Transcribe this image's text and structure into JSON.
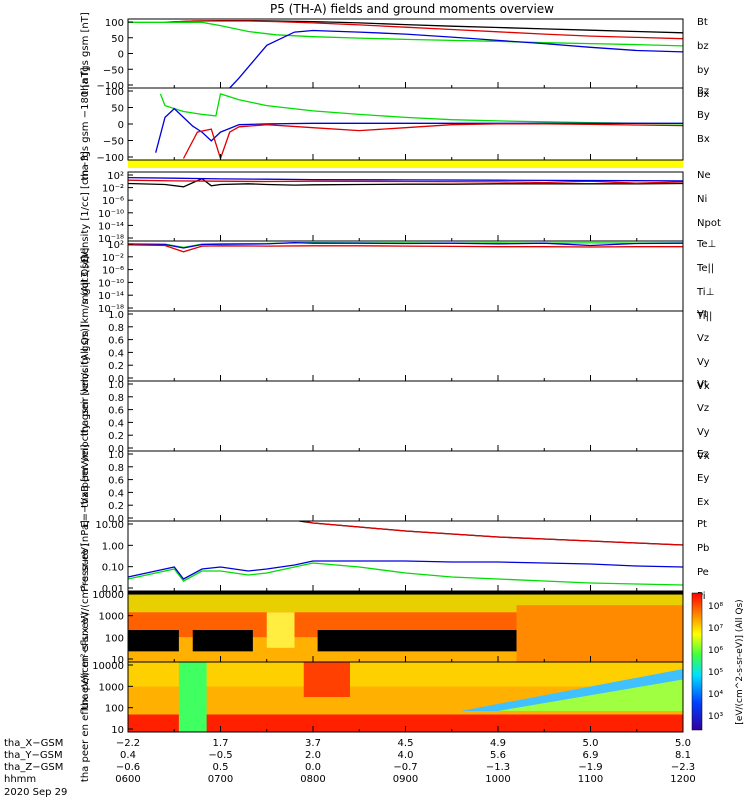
{
  "title": "P5 (TH-A) fields and ground moments overview",
  "colors": {
    "black": "#000000",
    "red": "#e00000",
    "green": "#00dd00",
    "blue": "#0000dd",
    "yellow": "#ffff00"
  },
  "chart_data": [
    {
      "type": "line",
      "ylabel": "tha fgs gsm [nT]",
      "yticks": [
        "100",
        "50",
        "0",
        "−50",
        "−100"
      ],
      "ylim": [
        -100,
        110
      ],
      "legend": [
        {
          "label": "Bt",
          "color": "#000000"
        },
        {
          "label": "bz",
          "color": "#e00000"
        },
        {
          "label": "by",
          "color": "#00dd00"
        },
        {
          "label": "bx",
          "color": "#0000dd"
        }
      ],
      "series": [
        {
          "color": "#000000",
          "x": [
            6.4,
            6.7,
            7.0,
            7.3,
            7.6,
            8.0,
            8.5,
            9.0,
            9.5,
            10.0,
            10.5,
            11.0,
            11.5,
            12.0
          ],
          "y": [
            100,
            104,
            105,
            105,
            104,
            102,
            98,
            93,
            88,
            84,
            80,
            76,
            72,
            68
          ]
        },
        {
          "color": "#e00000",
          "x": [
            6.4,
            6.7,
            7.0,
            7.3,
            7.6,
            8.0,
            8.5,
            9.0,
            9.5,
            10.0,
            10.5,
            11.0,
            11.5,
            12.0
          ],
          "y": [
            100,
            104,
            104,
            104,
            102,
            98,
            92,
            85,
            78,
            71,
            64,
            58,
            54,
            50
          ]
        },
        {
          "color": "#00dd00",
          "x": [
            6.0,
            6.2,
            6.4,
            6.6,
            6.8,
            7.0,
            7.3,
            7.6,
            8.0,
            8.5,
            9.0,
            9.5,
            10.0,
            10.5,
            11.0,
            11.5,
            12.0
          ],
          "y": [
            100,
            100,
            100,
            100,
            100,
            90,
            72,
            62,
            56,
            52,
            48,
            45,
            42,
            38,
            35,
            32,
            28
          ]
        },
        {
          "color": "#0000dd",
          "x": [
            7.1,
            7.2,
            7.35,
            7.5,
            7.8,
            8.0,
            8.5,
            9.0,
            9.5,
            10.0,
            10.5,
            11.0,
            11.5,
            12.0
          ],
          "y": [
            -100,
            -70,
            -20,
            30,
            70,
            75,
            70,
            64,
            55,
            45,
            35,
            24,
            14,
            10
          ]
        }
      ]
    },
    {
      "type": "line",
      "ylabel": "tha fgs gsm −180 [nT]",
      "yticks": [
        "100",
        "50",
        "0",
        "−50",
        "−100"
      ],
      "ylim": [
        -125,
        120
      ],
      "legend": [
        {
          "label": "Bz",
          "color": "#e00000"
        },
        {
          "label": "By",
          "color": "#00dd00"
        },
        {
          "label": "Bx",
          "color": "#0000dd"
        }
      ],
      "series": [
        {
          "color": "#00dd00",
          "x": [
            6.35,
            6.4,
            6.6,
            6.8,
            6.95,
            7.0,
            7.2,
            7.5,
            8.0,
            8.5,
            9.0,
            9.5,
            10.0,
            10.5,
            11.0,
            11.5,
            12.0
          ],
          "y": [
            100,
            60,
            40,
            30,
            25,
            100,
            80,
            60,
            42,
            30,
            20,
            12,
            8,
            5,
            2,
            0,
            -2
          ]
        },
        {
          "color": "#0000dd",
          "x": [
            6.3,
            6.4,
            6.5,
            6.6,
            6.7,
            6.8,
            6.9,
            7.0,
            7.2,
            7.5,
            8.0,
            9.0,
            10.0,
            11.0,
            12.0
          ],
          "y": [
            -100,
            20,
            50,
            20,
            -10,
            -30,
            -60,
            -30,
            -5,
            -2,
            0,
            0,
            0,
            0,
            0
          ]
        },
        {
          "color": "#e00000",
          "x": [
            6.6,
            6.75,
            6.9,
            7.0,
            7.1,
            7.2,
            7.5,
            8.0,
            8.5,
            9.0,
            9.5,
            10.0,
            10.5,
            11.0,
            11.5,
            12.0
          ],
          "y": [
            -120,
            -30,
            -20,
            -120,
            -30,
            -12,
            -5,
            -15,
            -25,
            -15,
            -5,
            -2,
            -2,
            -4,
            -6,
            -8
          ]
        }
      ]
    },
    {
      "type": "line",
      "ylabel": "Density [1/cc] [cm−3]",
      "yticks": [
        "10²",
        "10⁻²",
        "10⁻⁶",
        "10⁻¹⁰",
        "10⁻¹⁴",
        "10⁻¹⁸"
      ],
      "ylim": [
        -18,
        3
      ],
      "scale": "log",
      "legend": [
        {
          "label": "Ne",
          "color": "#e00000"
        },
        {
          "label": "Ni",
          "color": "#000000"
        },
        {
          "label": "Npot",
          "color": "#0000dd"
        }
      ],
      "series": [
        {
          "color": "#000000",
          "x": [
            6.0,
            6.4,
            6.6,
            6.8,
            6.9,
            7.0,
            7.3,
            7.5,
            7.8,
            8.0,
            8.5,
            9.0,
            9.5,
            10.0,
            10.5,
            11.0,
            11.5,
            12.0
          ],
          "y": [
            -0.5,
            -0.8,
            -1.5,
            1.0,
            -1.2,
            -0.8,
            -0.6,
            -0.8,
            -1.0,
            -0.9,
            -0.8,
            -0.7,
            -0.7,
            -0.6,
            -0.6,
            -0.6,
            -0.6,
            -0.5
          ]
        },
        {
          "color": "#e00000",
          "x": [
            6.0,
            6.5,
            7.0,
            7.5,
            8.0,
            9.0,
            10.0,
            10.5,
            11.0,
            11.5,
            12.0
          ],
          "y": [
            0.5,
            0.3,
            0.2,
            0.1,
            0.2,
            0.1,
            0.0,
            -0.2,
            0.2,
            -0.4,
            0.0
          ]
        },
        {
          "color": "#0000dd",
          "x": [
            6.0,
            6.5,
            7.0,
            7.5,
            8.0,
            9.0,
            10.0,
            11.0,
            12.0
          ],
          "y": [
            1.3,
            1.1,
            0.9,
            0.8,
            0.7,
            0.6,
            0.5,
            0.4,
            0.3
          ]
        }
      ]
    },
    {
      "type": "line",
      "ylabel": "mgqt3 [eV]",
      "yticks": [
        "10²",
        "10⁻²",
        "10⁻⁶",
        "10⁻¹⁰",
        "10⁻¹⁴",
        "10⁻¹⁸"
      ],
      "ylim": [
        -18,
        4
      ],
      "scale": "log",
      "legend": [
        {
          "label": "Te⊥",
          "color": "#e00000"
        },
        {
          "label": "Te||",
          "color": "#000000"
        },
        {
          "label": "Ti⊥",
          "color": "#0000dd"
        },
        {
          "label": "Ti||",
          "color": "#00dd00"
        }
      ],
      "series": [
        {
          "color": "#00dd00",
          "x": [
            6.0,
            6.4,
            6.6,
            6.8,
            7.0,
            7.5,
            8.0,
            8.5,
            9.0,
            9.5,
            10.0,
            10.5,
            11.0,
            11.5,
            12.0
          ],
          "y": [
            3.1,
            3.0,
            2.0,
            3.0,
            3.1,
            3.2,
            3.5,
            3.4,
            3.4,
            3.3,
            3.4,
            3.3,
            3.4,
            3.3,
            3.4
          ]
        },
        {
          "color": "#0000dd",
          "x": [
            6.0,
            6.4,
            6.6,
            6.8,
            7.0,
            7.5,
            7.8,
            8.0,
            8.5,
            9.0,
            9.5,
            10.0,
            10.5,
            11.0,
            11.5,
            12.0
          ],
          "y": [
            3.0,
            2.9,
            1.8,
            2.9,
            3.0,
            3.1,
            3.5,
            3.3,
            3.3,
            3.2,
            3.3,
            3.1,
            3.3,
            2.6,
            3.2,
            3.3
          ]
        },
        {
          "color": "#e00000",
          "x": [
            6.0,
            6.4,
            6.6,
            6.8,
            7.0,
            7.5,
            8.0,
            8.5,
            9.0,
            9.5,
            10.0,
            10.5,
            11.0,
            11.5,
            12.0
          ],
          "y": [
            2.8,
            2.6,
            0.6,
            2.4,
            2.5,
            2.4,
            2.5,
            2.5,
            2.4,
            2.3,
            2.2,
            2.2,
            2.1,
            2.2,
            2.2
          ]
        }
      ]
    },
    {
      "type": "line",
      "ylabel": "tha peir velocity gsm [km/s (All Qs)]",
      "yticks": [
        "1.0",
        "0.8",
        "0.6",
        "0.4",
        "0.2",
        "0.0"
      ],
      "ylim": [
        0,
        1
      ],
      "legend": [
        {
          "label": "Vt",
          "color": "#000000"
        },
        {
          "label": "Vz",
          "color": "#e00000"
        },
        {
          "label": "Vy",
          "color": "#00dd00"
        },
        {
          "label": "Vx",
          "color": "#0000dd"
        }
      ],
      "series": []
    },
    {
      "type": "line",
      "ylabel": "tha peer velocity gsm [km/s (All Qs)]",
      "yticks": [
        "1.0",
        "0.8",
        "0.6",
        "0.4",
        "0.2",
        "0.0"
      ],
      "ylim": [
        0,
        1
      ],
      "legend": [
        {
          "label": "Vt",
          "color": "#000000"
        },
        {
          "label": "Vz",
          "color": "#e00000"
        },
        {
          "label": "Vy",
          "color": "#00dd00"
        },
        {
          "label": "Vx",
          "color": "#0000dd"
        }
      ],
      "series": []
    },
    {
      "type": "line",
      "ylabel": "E=−VxB [mV/m]",
      "yticks": [
        "1.0",
        "0.8",
        "0.6",
        "0.4",
        "0.2",
        "0.0"
      ],
      "ylim": [
        0,
        1
      ],
      "legend": [
        {
          "label": "Ez",
          "color": "#e00000"
        },
        {
          "label": "Ey",
          "color": "#00dd00"
        },
        {
          "label": "Ex",
          "color": "#0000dd"
        }
      ],
      "series": []
    },
    {
      "type": "line",
      "ylabel": "Pressure [nPa]",
      "yticks": [
        "10.00",
        "1.00",
        "0.10",
        "0.01"
      ],
      "ylim": [
        -2.1,
        1.4
      ],
      "scale": "log",
      "legend": [
        {
          "label": "Pt",
          "color": "#000000"
        },
        {
          "label": "Pb",
          "color": "#e00000"
        },
        {
          "label": "Pe",
          "color": "#00dd00"
        },
        {
          "label": "Pi",
          "color": "#0000dd"
        }
      ],
      "series": [
        {
          "color": "#000000",
          "x": [
            7.85,
            8.0,
            8.5,
            9.0,
            9.5,
            10.0,
            10.5,
            11.0,
            11.5,
            12.0
          ],
          "y": [
            1.4,
            1.3,
            1.1,
            0.9,
            0.75,
            0.6,
            0.5,
            0.4,
            0.3,
            0.2
          ]
        },
        {
          "color": "#e00000",
          "x": [
            7.9,
            8.0,
            8.5,
            9.0,
            9.5,
            10.0,
            10.5,
            11.0,
            11.5,
            12.0
          ],
          "y": [
            1.4,
            1.3,
            1.1,
            0.9,
            0.75,
            0.6,
            0.5,
            0.4,
            0.3,
            0.2
          ]
        },
        {
          "color": "#00dd00",
          "x": [
            6.0,
            6.3,
            6.5,
            6.6,
            6.8,
            7.0,
            7.3,
            7.5,
            7.8,
            8.0,
            8.5,
            9.0,
            9.5,
            10.0,
            10.5,
            11.0,
            11.5,
            12.0
          ],
          "y": [
            -1.5,
            -1.2,
            -1.0,
            -1.6,
            -1.1,
            -1.1,
            -1.3,
            -1.2,
            -0.9,
            -0.7,
            -0.9,
            -1.2,
            -1.4,
            -1.5,
            -1.6,
            -1.7,
            -1.75,
            -1.8
          ]
        },
        {
          "color": "#0000dd",
          "x": [
            6.0,
            6.3,
            6.5,
            6.6,
            6.8,
            7.0,
            7.3,
            7.5,
            7.8,
            8.0,
            8.5,
            9.0,
            9.5,
            10.0,
            10.5,
            11.0,
            11.5,
            12.0
          ],
          "y": [
            -1.4,
            -1.1,
            -0.9,
            -1.5,
            -1.0,
            -0.9,
            -1.1,
            -1.0,
            -0.8,
            -0.6,
            -0.6,
            -0.6,
            -0.65,
            -0.65,
            -0.7,
            -0.75,
            -0.85,
            -0.9
          ]
        }
      ]
    },
    {
      "type": "heatmap",
      "ylabel": "tha peir en eflux eV/(cm²-s-sr-eV)",
      "yticks": [
        "10000",
        "1000",
        "100",
        "10"
      ],
      "scale": "log"
    },
    {
      "type": "heatmap",
      "ylabel": "tha peer en eflux eV/(cm²-s-sr-eV)",
      "yticks": [
        "10000",
        "1000",
        "100",
        "10"
      ],
      "scale": "log"
    }
  ],
  "colorbar": {
    "ticks": [
      "10⁸",
      "10⁷",
      "10⁶",
      "10⁵",
      "10⁴",
      "10³"
    ],
    "label": "[eV/(cm^2-s-sr-eV)] (All Qs)"
  },
  "xaxis": {
    "hours": [
      6,
      7,
      8,
      9,
      10,
      11,
      12
    ],
    "rows": [
      {
        "label": "tha_X−GSM",
        "values": [
          "−2.2",
          "1.7",
          "3.7",
          "4.5",
          "4.9",
          "5.0",
          "5.0"
        ]
      },
      {
        "label": "tha_Y−GSM",
        "values": [
          "0.4",
          "−0.5",
          "2.0",
          "4.0",
          "5.6",
          "6.9",
          "8.1"
        ]
      },
      {
        "label": "tha_Z−GSM",
        "values": [
          "−0.6",
          "0.5",
          "0.0",
          "−0.7",
          "−1.3",
          "−1.9",
          "−2.3"
        ]
      },
      {
        "label": "hhmm",
        "values": [
          "0600",
          "0700",
          "0800",
          "0900",
          "1000",
          "1100",
          "1200"
        ]
      }
    ],
    "date": "2020 Sep 29"
  }
}
